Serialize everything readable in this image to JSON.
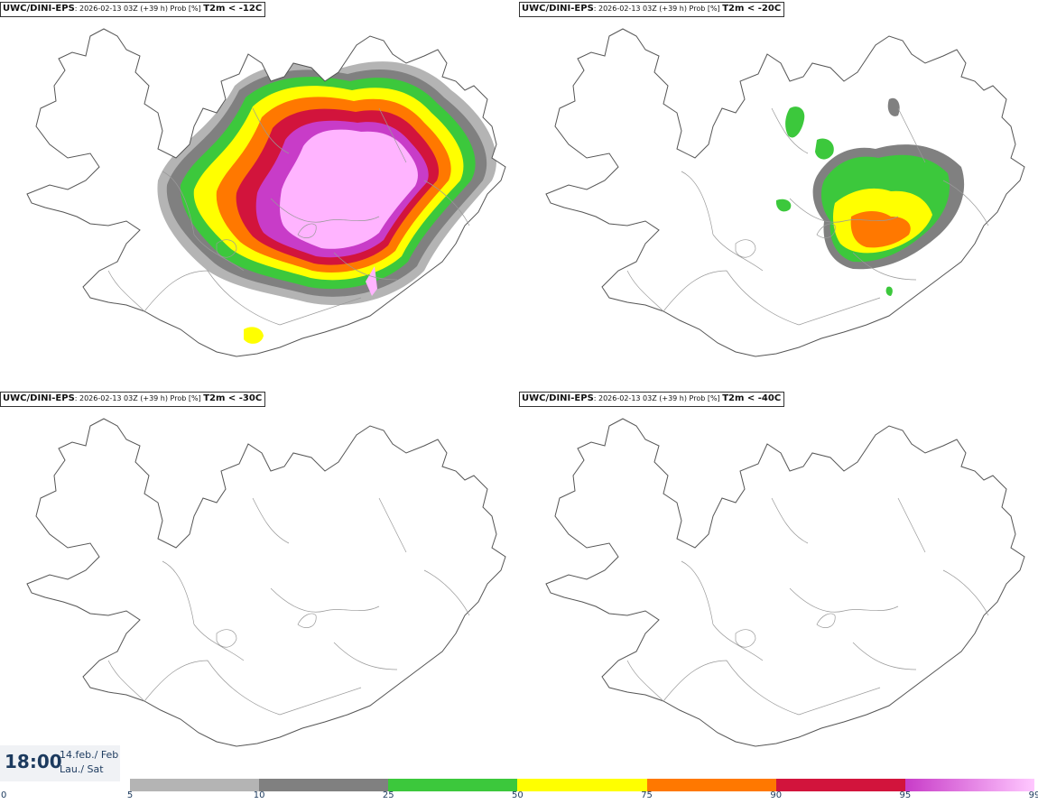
{
  "panels": [
    {
      "model": "UWC/DINI-EPS",
      "info": ": 2026-02-13 03Z (+39 h) Prob [%] ",
      "variable": "T2m < -12C"
    },
    {
      "model": "UWC/DINI-EPS",
      "info": ": 2026-02-13 03Z (+39 h) Prob [%] ",
      "variable": "T2m < -20C"
    },
    {
      "model": "UWC/DINI-EPS",
      "info": ": 2026-02-13 03Z (+39 h) Prob [%] ",
      "variable": "T2m < -30C"
    },
    {
      "model": "UWC/DINI-EPS",
      "info": ": 2026-02-13 03Z (+39 h) Prob [%] ",
      "variable": "T2m < -40C"
    }
  ],
  "time": {
    "hour": "18:00",
    "date_line": "14.feb./ Feb",
    "day_line": "Lau./ Sat"
  },
  "legend": {
    "ticks": [
      "0",
      "5",
      "10",
      "25",
      "50",
      "75",
      "90",
      "95",
      "99"
    ],
    "bins": [
      {
        "from": 5,
        "to": 10,
        "color": "#b4b4b4"
      },
      {
        "from": 10,
        "to": 25,
        "color": "#808080"
      },
      {
        "from": 25,
        "to": 50,
        "color": "#3cc83c"
      },
      {
        "from": 50,
        "to": 75,
        "color": "#ffff00"
      },
      {
        "from": 75,
        "to": 90,
        "color": "#ff7800"
      },
      {
        "from": 90,
        "to": 95,
        "color": "#d2143c"
      },
      {
        "from": 95,
        "to": 99,
        "color": "#c83cc8",
        "to_color": "#ffc8ff"
      }
    ]
  },
  "colors": {
    "outline": "#555555",
    "accent_text": "#1c3a5e"
  }
}
